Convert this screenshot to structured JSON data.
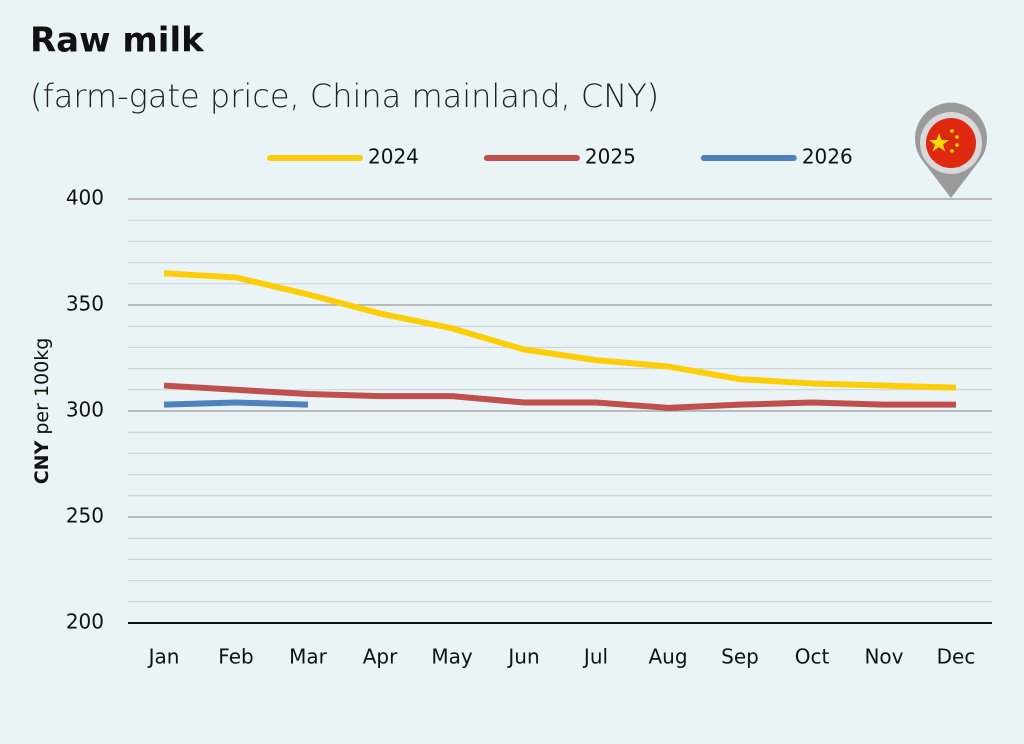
{
  "chart_data": {
    "type": "line",
    "title": "Raw milk",
    "subtitle": "(farm-gate price, China mainland, CNY)",
    "ylabel_unit": "CNY",
    "ylabel": "per 100kg",
    "categories": [
      "Jan",
      "Feb",
      "Mar",
      "Apr",
      "May",
      "Jun",
      "Jul",
      "Aug",
      "Sep",
      "Oct",
      "Nov",
      "Dec"
    ],
    "series": [
      {
        "name": "2024",
        "color": "#fcce0a",
        "values": [
          365,
          363,
          355,
          346,
          339,
          329,
          324,
          321,
          315,
          313,
          312,
          311
        ]
      },
      {
        "name": "2025",
        "color": "#c0504d",
        "values": [
          312,
          310,
          308,
          307,
          307,
          304,
          304,
          301.5,
          303,
          304,
          303,
          303
        ]
      },
      {
        "name": "2026",
        "color": "#4f81bd",
        "values": [
          303,
          304,
          303,
          null,
          null,
          null,
          null,
          null,
          null,
          null,
          null,
          null
        ]
      }
    ],
    "ylim": [
      200,
      400
    ],
    "yticks": [
      200,
      250,
      300,
      350,
      400
    ],
    "grid": true,
    "legend": "top"
  }
}
